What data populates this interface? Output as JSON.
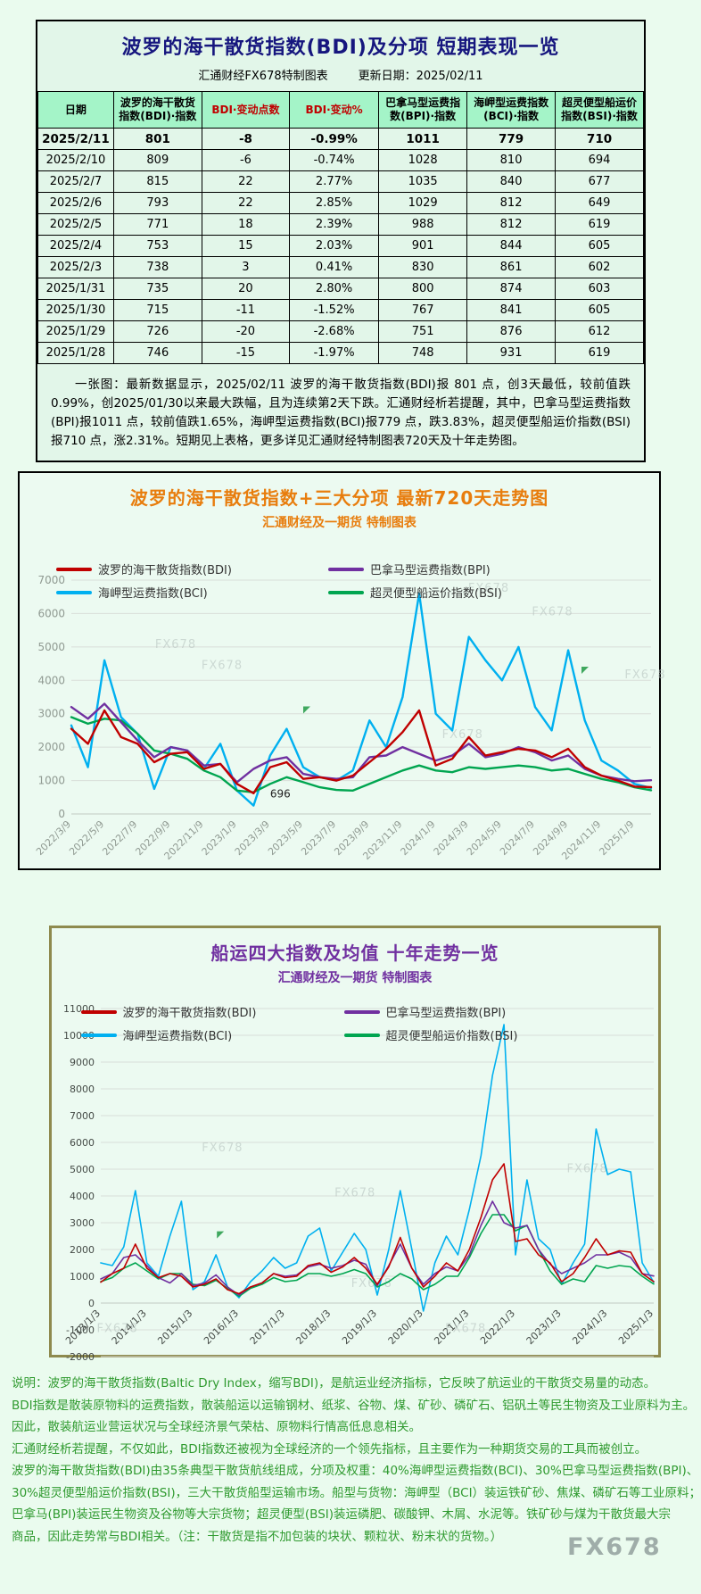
{
  "page": {
    "background": "#eafbee",
    "watermark_text": "FX678"
  },
  "colors": {
    "bdi": "#c00000",
    "bpi": "#7030a0",
    "bci": "#00b0f0",
    "bsi": "#00a550",
    "table_header_bg": "#a4f4c8",
    "title_navy": "#16167e",
    "chart1_title_orange": "#e87d0d",
    "chart2_title_purple": "#7030a0",
    "notes_green": "#2f9a2f"
  },
  "table_panel": {
    "title": "波罗的海干散货指数(BDI)及分项 短期表现一览",
    "credit": "汇通财经FX678特制图表",
    "updated": "更新日期：2025/02/11",
    "table": {
      "columns": [
        "日期",
        "波罗的海干散货指数(BDI)·指数",
        "BDI·变动点数",
        "BDI·变动%",
        "巴拿马型运费指数(BPI)·指数",
        "海岬型运费指数(BCI)·指数",
        "超灵便型船运价指数(BSI)·指数"
      ],
      "rows": [
        [
          "2025/2/11",
          "801",
          "-8",
          "-0.99%",
          "1011",
          "779",
          "710"
        ],
        [
          "2025/2/10",
          "809",
          "-6",
          "-0.74%",
          "1028",
          "810",
          "694"
        ],
        [
          "2025/2/7",
          "815",
          "22",
          "2.77%",
          "1035",
          "840",
          "677"
        ],
        [
          "2025/2/6",
          "793",
          "22",
          "2.85%",
          "1029",
          "812",
          "649"
        ],
        [
          "2025/2/5",
          "771",
          "18",
          "2.39%",
          "988",
          "812",
          "619"
        ],
        [
          "2025/2/4",
          "753",
          "15",
          "2.03%",
          "901",
          "844",
          "605"
        ],
        [
          "2025/2/3",
          "738",
          "3",
          "0.41%",
          "830",
          "861",
          "602"
        ],
        [
          "2025/1/31",
          "735",
          "20",
          "2.80%",
          "800",
          "874",
          "603"
        ],
        [
          "2025/1/30",
          "715",
          "-11",
          "-1.52%",
          "767",
          "841",
          "605"
        ],
        [
          "2025/1/29",
          "726",
          "-20",
          "-2.68%",
          "751",
          "876",
          "612"
        ],
        [
          "2025/1/28",
          "746",
          "-15",
          "-1.97%",
          "748",
          "931",
          "619"
        ]
      ]
    },
    "summary": "一张图：最新数据显示，2025/02/11 波罗的海干散货指数(BDI)报 801 点，创3天最低，较前值跌0.99%，创2025/01/30以来最大跌幅，且为连续第2天下跌。汇通财经析若提醒，其中，巴拿马型运费指数(BPI)报1011 点，较前值跌1.65%，海岬型运费指数(BCI)报779 点，跌3.83%，超灵便型船运价指数(BSI)报710 点，涨2.31%。短期见上表格，更多详见汇通财经特制图表720天及十年走势图。"
  },
  "chart_data": [
    {
      "type": "line",
      "title": "波罗的海干散货指数+三大分项  最新720天走势图",
      "subtitle": "汇通财经及一期货 特制图表",
      "ylim": [
        0,
        7000
      ],
      "ystep": 1000,
      "grid": true,
      "legend_position": "top",
      "x": [
        "2022/3",
        "2022/4",
        "2022/5",
        "2022/6",
        "2022/7",
        "2022/8",
        "2022/9",
        "2022/10",
        "2022/11",
        "2022/12",
        "2023/1",
        "2023/2",
        "2023/3",
        "2023/4",
        "2023/5",
        "2023/6",
        "2023/7",
        "2023/8",
        "2023/9",
        "2023/10",
        "2023/11",
        "2023/12",
        "2024/1",
        "2024/2",
        "2024/3",
        "2024/4",
        "2024/5",
        "2024/6",
        "2024/7",
        "2024/8",
        "2024/9",
        "2024/10",
        "2024/11",
        "2024/12",
        "2025/1",
        "2025/2"
      ],
      "x_axis_labels": [
        "2022/3/9",
        "2022/5/9",
        "2022/7/9",
        "2022/9/9",
        "2022/11/9",
        "2023/1/9",
        "2023/3/9",
        "2023/5/9",
        "2023/7/9",
        "2023/9/9",
        "2023/11/9",
        "2024/1/9",
        "2024/3/9",
        "2024/5/9",
        "2024/7/9",
        "2024/9/9",
        "2024/11/9",
        "2025/1/9"
      ],
      "x_tick_step": 2,
      "series": [
        {
          "name": "波罗的海干散货指数(BDI)",
          "color": "#c00000",
          "values": [
            2550,
            2100,
            3100,
            2300,
            2100,
            1550,
            1800,
            1850,
            1350,
            1500,
            900,
            620,
            1400,
            1550,
            1050,
            1100,
            1000,
            1150,
            1550,
            1950,
            2450,
            3100,
            1450,
            1650,
            2300,
            1750,
            1850,
            1950,
            1900,
            1700,
            1950,
            1400,
            1150,
            1000,
            820,
            801
          ]
        },
        {
          "name": "巴拿马型运费指数(BPI)",
          "color": "#7030a0",
          "values": [
            3200,
            2850,
            3300,
            2750,
            2200,
            1700,
            2000,
            1900,
            1450,
            1500,
            950,
            1350,
            1600,
            1700,
            1200,
            1100,
            1050,
            1100,
            1700,
            1750,
            2000,
            1800,
            1600,
            1750,
            2100,
            1700,
            1800,
            2000,
            1850,
            1600,
            1750,
            1350,
            1150,
            1050,
            980,
            1011
          ]
        },
        {
          "name": "海岬型运费指数(BCI)",
          "color": "#00b0f0",
          "values": [
            2650,
            1400,
            4600,
            2900,
            2400,
            750,
            2000,
            1900,
            1350,
            2100,
            700,
            250,
            1750,
            2550,
            1400,
            1100,
            1000,
            1300,
            2800,
            2000,
            3500,
            6600,
            3000,
            2500,
            5300,
            4600,
            4000,
            5000,
            3200,
            2500,
            4900,
            2800,
            1600,
            1300,
            900,
            779
          ]
        },
        {
          "name": "超灵便型船运价指数(BSI)",
          "color": "#00a550",
          "values": [
            2900,
            2700,
            2850,
            2800,
            2400,
            1900,
            1800,
            1650,
            1300,
            1100,
            700,
            650,
            900,
            1100,
            950,
            800,
            720,
            700,
            900,
            1100,
            1300,
            1450,
            1300,
            1250,
            1400,
            1350,
            1400,
            1450,
            1400,
            1300,
            1350,
            1200,
            1050,
            950,
            800,
            710
          ]
        }
      ],
      "annotation": {
        "text": "696",
        "x_index": 12,
        "y_value": 600
      }
    },
    {
      "type": "line",
      "title": "船运四大指数及均值 十年走势一览",
      "subtitle": "汇通财经及一期货 特制图表",
      "ylim": [
        -2000,
        11000
      ],
      "ystep": 1000,
      "grid": true,
      "legend_position": "top",
      "x": [
        "2013Q1",
        "2013Q2",
        "2013Q3",
        "2013Q4",
        "2014Q1",
        "2014Q2",
        "2014Q3",
        "2014Q4",
        "2015Q1",
        "2015Q2",
        "2015Q3",
        "2015Q4",
        "2016Q1",
        "2016Q2",
        "2016Q3",
        "2016Q4",
        "2017Q1",
        "2017Q2",
        "2017Q3",
        "2017Q4",
        "2018Q1",
        "2018Q2",
        "2018Q3",
        "2018Q4",
        "2019Q1",
        "2019Q2",
        "2019Q3",
        "2019Q4",
        "2020Q1",
        "2020Q2",
        "2020Q3",
        "2020Q4",
        "2021Q1",
        "2021Q2",
        "2021Q3",
        "2021Q4",
        "2022Q1",
        "2022Q2",
        "2022Q3",
        "2022Q4",
        "2023Q1",
        "2023Q2",
        "2023Q3",
        "2023Q4",
        "2024Q1",
        "2024Q2",
        "2024Q3",
        "2024Q4",
        "2025Q1"
      ],
      "x_axis_labels": [
        "2013/1/3",
        "2014/1/3",
        "2015/1/3",
        "2016/1/3",
        "2017/1/3",
        "2018/1/3",
        "2019/1/3",
        "2020/1/3",
        "2021/1/3",
        "2022/1/3",
        "2023/1/3",
        "2024/1/3",
        "2025/1/3"
      ],
      "x_tick_step": 4,
      "series": [
        {
          "name": "波罗的海干散货指数(BDI)",
          "color": "#c00000",
          "values": [
            780,
            1100,
            1300,
            2200,
            1300,
            950,
            1100,
            1000,
            600,
            700,
            900,
            500,
            350,
            600,
            750,
            1100,
            950,
            1000,
            1400,
            1500,
            1150,
            1350,
            1700,
            1300,
            700,
            1350,
            2450,
            1300,
            600,
            1000,
            1500,
            1200,
            2000,
            3200,
            4600,
            5200,
            2300,
            2400,
            1800,
            1500,
            800,
            1100,
            1700,
            2400,
            1800,
            1950,
            1900,
            1100,
            800
          ]
        },
        {
          "name": "巴拿马型运费指数(BPI)",
          "color": "#7030a0",
          "values": [
            900,
            1100,
            1700,
            1800,
            1400,
            950,
            750,
            1100,
            650,
            750,
            1050,
            600,
            300,
            600,
            750,
            1100,
            1000,
            1050,
            1350,
            1450,
            1300,
            1400,
            1600,
            1450,
            650,
            1400,
            2200,
            1300,
            700,
            1100,
            1350,
            1200,
            1800,
            2900,
            3800,
            3000,
            2800,
            2900,
            2000,
            1450,
            1100,
            1300,
            1500,
            1800,
            1800,
            1900,
            1700,
            1100,
            1011
          ]
        },
        {
          "name": "海岬型运费指数(BCI)",
          "color": "#00b0f0",
          "values": [
            1500,
            1400,
            2100,
            4200,
            1500,
            1000,
            2500,
            3800,
            500,
            800,
            1800,
            600,
            200,
            800,
            1200,
            1700,
            1300,
            1500,
            2500,
            2800,
            1200,
            1900,
            2600,
            2000,
            300,
            2000,
            4200,
            2000,
            -300,
            1500,
            2500,
            1800,
            3500,
            5500,
            8500,
            10400,
            1800,
            4600,
            2400,
            2000,
            700,
            1500,
            2200,
            6500,
            4800,
            5000,
            4900,
            1500,
            779
          ]
        },
        {
          "name": "超灵便型船运价指数(BSI)",
          "color": "#00a550",
          "values": [
            800,
            950,
            1300,
            1500,
            1200,
            900,
            1100,
            1100,
            700,
            650,
            850,
            550,
            250,
            550,
            700,
            950,
            800,
            850,
            1100,
            1100,
            1000,
            1100,
            1250,
            1100,
            600,
            800,
            1100,
            900,
            500,
            700,
            1000,
            1000,
            1700,
            2600,
            3300,
            3300,
            2700,
            2900,
            2000,
            1200,
            700,
            900,
            800,
            1400,
            1300,
            1400,
            1350,
            1000,
            710
          ]
        }
      ]
    }
  ],
  "notes": {
    "lines": [
      "说明：波罗的海干散货指数(Baltic Dry Index，缩写BDI)，是航运业经济指标，它反映了航运业的干散货交易量的动态。",
      "BDI指数是散装原物料的运费指数，散装船运以运输钢材、纸浆、谷物、煤、矿砂、磷矿石、铝矾土等民生物资及工业原料为主。",
      "因此，散装航运业营运状况与全球经济景气荣枯、原物料行情高低息息相关。",
      "汇通财经析若提醒，不仅如此，BDI指数还被视为全球经济的一个领先指标，且主要作为一种期货交易的工具而被创立。",
      "波罗的海干散货指数(BDI)由35条典型干散货航线组成，分项及权重：40%海岬型运费指数(BCI)、30%巴拿马型运费指数(BPI)、",
      "30%超灵便型船运价指数(BSI)，三大干散货船型运输市场。船型与货物：海岬型（BCI）装运铁矿砂、焦煤、磷矿石等工业原料；",
      "巴拿马(BPI)装运民生物资及谷物等大宗货物；超灵便型(BSI)装运磷肥、碳酸钾、木屑、水泥等。铁矿砂与煤为干散货最大宗",
      "商品，因此走势常与BDI相关。（注：干散货是指不加包装的块状、颗粒状、粉末状的货物。）"
    ]
  }
}
